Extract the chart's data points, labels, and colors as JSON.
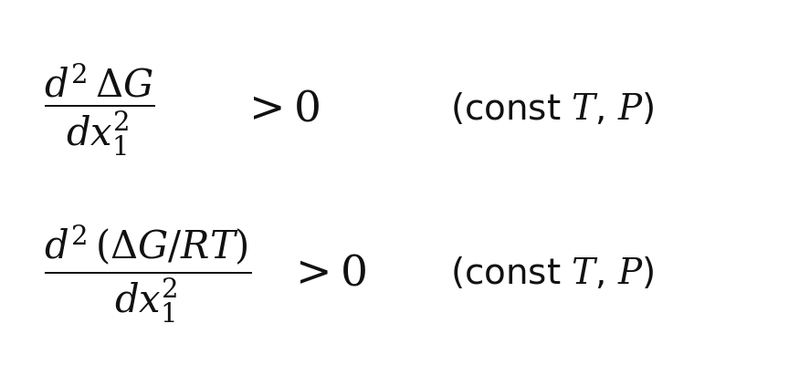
{
  "background_color": "#ffffff",
  "figsize": [
    8.64,
    4.0
  ],
  "dpi": 100,
  "eq1_fraction": "$\\dfrac{d^{2}\\,\\Delta G}{dx_{1}^{2}}$",
  "eq1_rhs": "$> 0$",
  "eq1_condition": "(const $T$, $P$)",
  "eq2_fraction": "$\\dfrac{d^{2}\\,(\\Delta G/RT)}{dx_{1}^{2}}$",
  "eq2_rhs": "$> 0$",
  "eq2_condition": "(const $T$, $P$)",
  "fontsize": 30,
  "rhs_fontsize": 34,
  "cond_fontsize": 28,
  "text_color": "#111111"
}
